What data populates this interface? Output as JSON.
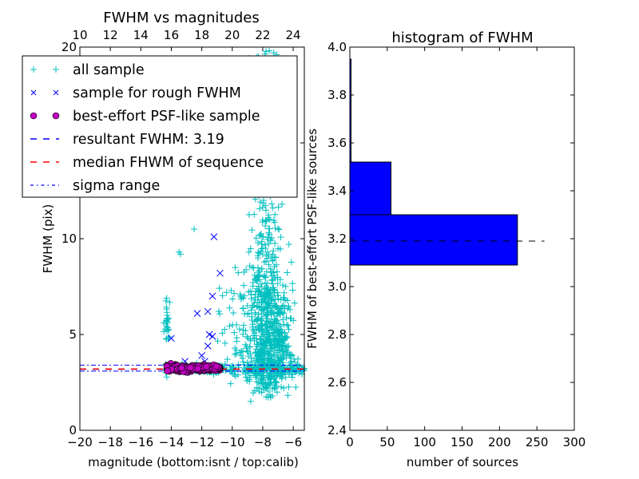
{
  "chart_data": [
    {
      "type": "scatter",
      "title": "FWHM vs magnitudes",
      "xlabel": "magnitude (bottom:isnt / top:calib)",
      "ylabel": "FWHM (pix)",
      "xlim": [
        -20,
        -5.27
      ],
      "ylim": [
        0,
        20
      ],
      "xticks": [
        -20,
        -18,
        -16,
        -14,
        -12,
        -10,
        -8,
        -6
      ],
      "xtick_labels": [
        "−20",
        "−18",
        "−16",
        "−14",
        "−12",
        "−10",
        "−8",
        "−6"
      ],
      "yticks": [
        0,
        5,
        10,
        15,
        20
      ],
      "ytick_labels": [
        "0",
        "5",
        "10",
        "15",
        "20"
      ],
      "top_xlim": [
        10,
        24.73
      ],
      "top_xticks": [
        10,
        12,
        14,
        16,
        18,
        20,
        22,
        24
      ],
      "top_xtick_labels": [
        "10",
        "12",
        "14",
        "16",
        "18",
        "20",
        "22",
        "24"
      ],
      "legend_position": "upper-left",
      "legend": [
        {
          "label": "all sample",
          "marker": "+",
          "color": "#00bfbf"
        },
        {
          "label": "sample for rough FWHM",
          "marker": "x",
          "color": "#0000ff"
        },
        {
          "label": "best-effort PSF-like sample",
          "marker": "o",
          "color": "#bf00bf"
        },
        {
          "label": "resultant FWHM: 3.19",
          "linestyle": "dashed",
          "color": "#0000ff"
        },
        {
          "label": "median FHWM of sequence",
          "linestyle": "dashed",
          "color": "#ff0000"
        },
        {
          "label": "sigma range",
          "linestyle": "dashdot",
          "color": "#0000ff"
        }
      ],
      "lines": {
        "resultant_fwhm": 3.19,
        "median_fwhm": 3.2,
        "sigma_low": 3.09,
        "sigma_high": 3.4
      },
      "series": [
        {
          "name": "sample for rough FWHM",
          "points": [
            [
              -11.2,
              10.1
            ],
            [
              -10.8,
              8.2
            ],
            [
              -12.3,
              6.1
            ],
            [
              -11.6,
              6.2
            ],
            [
              -11.3,
              7.0
            ],
            [
              -14.0,
              4.8
            ],
            [
              -11.5,
              5.0
            ],
            [
              -11.3,
              4.9
            ],
            [
              -11.6,
              4.4
            ],
            [
              -12.0,
              3.9
            ],
            [
              -11.8,
              3.6
            ],
            [
              -13.1,
              3.6
            ],
            [
              -12.3,
              3.3
            ],
            [
              -11.9,
              3.1
            ]
          ]
        },
        {
          "name": "best-effort PSF-like sample",
          "x_range": [
            -14.3,
            -10.8
          ],
          "y_center": 3.25,
          "count": 280
        },
        {
          "name": "all sample",
          "description_clusters": [
            {
              "x_range": [
                -14.5,
                -14.0
              ],
              "y_range": [
                4.8,
                7.0
              ]
            },
            {
              "x_range": [
                -10.0,
                -6.0
              ],
              "y_range": [
                2.0,
                20.0
              ]
            },
            {
              "x_range": [
                -14.5,
                -5.3
              ],
              "y_range": [
                2.9,
                3.5
              ]
            }
          ]
        }
      ]
    },
    {
      "type": "bar",
      "orientation": "horizontal",
      "title": "histogram of FWHM",
      "xlabel": "number of sources",
      "ylabel": "FWHM of best-effort PSF-like sources",
      "xlim": [
        0,
        300
      ],
      "ylim": [
        2.4,
        4.0
      ],
      "xticks": [
        0,
        50,
        100,
        150,
        200,
        250,
        300
      ],
      "xtick_labels": [
        "0",
        "50",
        "100",
        "150",
        "200",
        "250",
        "300"
      ],
      "yticks": [
        2.4,
        2.6,
        2.8,
        3.0,
        3.2,
        3.4,
        3.6,
        3.8,
        4.0
      ],
      "ytick_labels": [
        "2.4",
        "2.6",
        "2.8",
        "3.0",
        "3.2",
        "3.4",
        "3.6",
        "3.8",
        "4.0"
      ],
      "bins": [
        {
          "from": 3.09,
          "to": 3.3,
          "count": 224
        },
        {
          "from": 3.3,
          "to": 3.52,
          "count": 55
        },
        {
          "from": 3.52,
          "to": 3.73,
          "count": 1
        },
        {
          "from": 3.73,
          "to": 3.95,
          "count": 1
        }
      ],
      "bar_color": "#0000ff",
      "median_line": {
        "value": 3.19,
        "x_extent": [
          0,
          260
        ],
        "linestyle": "dashed",
        "color": "#000000"
      }
    }
  ]
}
